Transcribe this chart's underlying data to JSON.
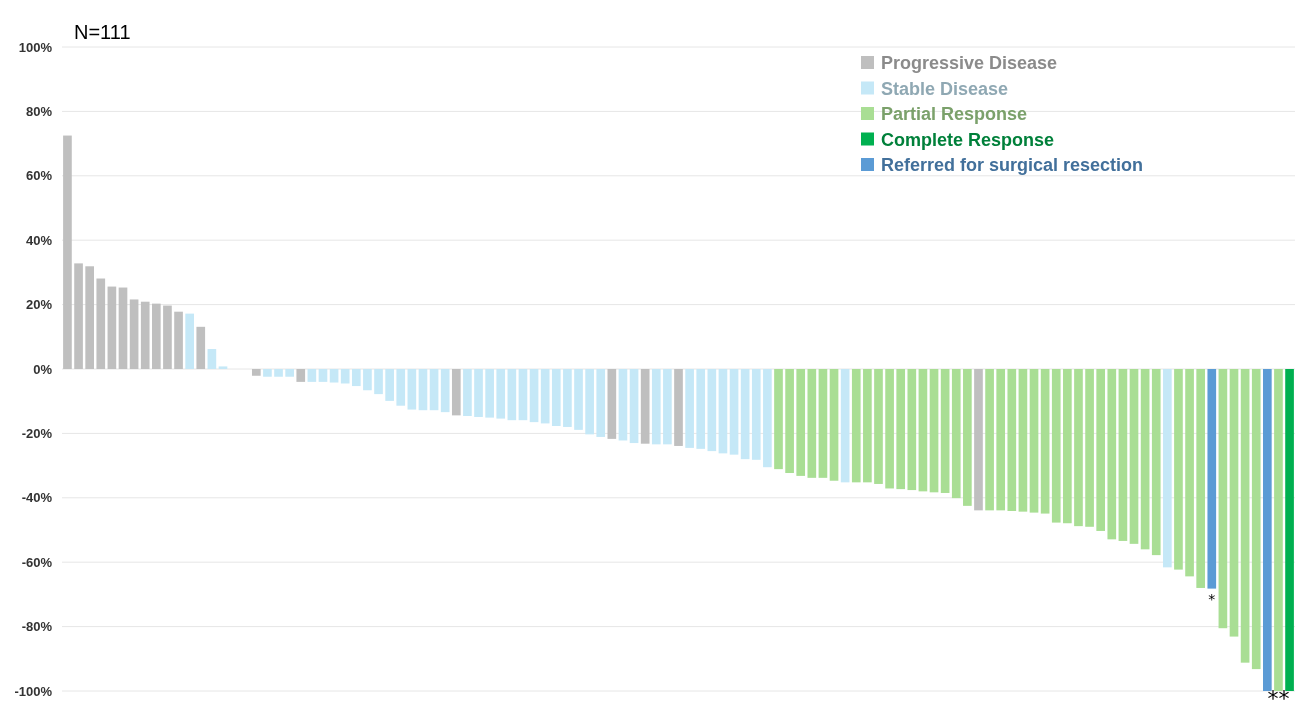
{
  "chart_data": {
    "type": "bar",
    "categories": [
      null,
      null,
      null,
      null,
      null,
      null,
      null,
      null,
      null,
      null,
      null,
      null,
      null,
      null,
      null,
      null,
      null,
      null,
      null,
      null,
      null,
      null,
      null,
      null,
      null,
      null,
      null,
      null,
      null,
      null,
      null,
      null,
      null,
      null,
      null,
      null,
      null,
      null,
      null,
      null,
      null,
      null,
      null,
      null,
      null,
      null,
      null,
      null,
      null,
      null,
      null,
      null,
      null,
      null,
      null,
      null,
      null,
      null,
      null,
      null,
      null,
      null,
      null,
      null,
      null,
      null,
      null,
      null,
      null,
      null,
      null,
      null,
      null,
      null,
      null,
      null,
      null,
      null,
      null,
      null,
      null,
      null,
      null,
      null,
      null,
      null,
      null,
      null,
      null,
      null,
      null,
      null,
      null,
      null,
      null,
      null,
      null,
      null,
      null,
      null,
      null,
      null,
      null,
      null,
      null,
      null,
      null,
      null,
      null,
      null,
      null
    ],
    "series": [
      {
        "name": "Progressive Disease",
        "color": "#bfbfbf",
        "values": [
          72.5,
          32.8,
          31.9,
          28.1,
          25.6,
          25.3,
          21.6,
          20.9,
          20.3,
          19.7,
          17.8,
          null,
          13.1,
          null,
          null,
          null,
          null,
          -2.1,
          null,
          null,
          null,
          -4,
          null,
          null,
          null,
          null,
          null,
          null,
          null,
          null,
          null,
          null,
          null,
          null,
          null,
          -14.4,
          null,
          null,
          null,
          null,
          null,
          null,
          null,
          null,
          null,
          null,
          null,
          null,
          null,
          -21.7,
          null,
          null,
          -23.2,
          null,
          null,
          -23.9,
          null,
          null,
          null,
          null,
          null,
          null,
          null,
          null,
          null,
          null,
          null,
          null,
          null,
          null,
          null,
          null,
          null,
          null,
          null,
          null,
          null,
          null,
          null,
          null,
          null,
          null,
          -43.9,
          null,
          null,
          null,
          null,
          null,
          null,
          null,
          null,
          null,
          null,
          null,
          null,
          null,
          null,
          null,
          null,
          null,
          null,
          null,
          null,
          null,
          null,
          null,
          null,
          null,
          null,
          null,
          null
        ]
      },
      {
        "name": "Stable Disease",
        "color": "#c5e8f7",
        "values": [
          null,
          null,
          null,
          null,
          null,
          null,
          null,
          null,
          null,
          null,
          null,
          17.2,
          null,
          6.2,
          0.8,
          null,
          null,
          null,
          -2.4,
          -2.4,
          -2.4,
          null,
          -4,
          -4,
          -4.2,
          -4.5,
          -5.3,
          -6.6,
          -7.8,
          -9.9,
          -11.4,
          -12.6,
          -12.8,
          -12.8,
          -13.4,
          null,
          -14.6,
          -14.9,
          -15.1,
          -15.4,
          -15.9,
          -15.9,
          -16.5,
          -16.9,
          -17.7,
          -18,
          -18.9,
          -20.3,
          -21.1,
          null,
          -22.2,
          -23,
          null,
          -23.4,
          -23.4,
          null,
          -24.5,
          -24.8,
          -25.5,
          -26.2,
          -26.6,
          -28,
          -28.2,
          -30.5,
          null,
          null,
          null,
          null,
          null,
          null,
          -35.2,
          null,
          null,
          null,
          null,
          null,
          null,
          null,
          null,
          null,
          null,
          null,
          null,
          null,
          null,
          null,
          null,
          null,
          null,
          null,
          null,
          null,
          null,
          null,
          null,
          null,
          null,
          null,
          null,
          -61.6,
          null,
          null,
          null,
          null,
          null,
          null,
          null,
          null,
          null,
          null,
          null
        ]
      },
      {
        "name": "Partial Response",
        "color": "#a9de94",
        "values": [
          null,
          null,
          null,
          null,
          null,
          null,
          null,
          null,
          null,
          null,
          null,
          null,
          null,
          null,
          null,
          null,
          null,
          null,
          null,
          null,
          null,
          null,
          null,
          null,
          null,
          null,
          null,
          null,
          null,
          null,
          null,
          null,
          null,
          null,
          null,
          null,
          null,
          null,
          null,
          null,
          null,
          null,
          null,
          null,
          null,
          null,
          null,
          null,
          null,
          null,
          null,
          null,
          null,
          null,
          null,
          null,
          null,
          null,
          null,
          null,
          null,
          null,
          null,
          null,
          -31.1,
          -32.3,
          -33.2,
          -33.8,
          -33.8,
          -34.7,
          null,
          -35.2,
          -35.2,
          -35.7,
          -37.1,
          -37.3,
          -37.6,
          -38,
          -38.3,
          -38.5,
          -40.1,
          -42.5,
          null,
          -43.9,
          -43.9,
          -44.1,
          -44.3,
          -44.6,
          -44.9,
          -47.7,
          -47.9,
          -48.8,
          -49,
          -50.3,
          -52.9,
          -53.4,
          -54.3,
          -56,
          -57.8,
          null,
          -62.3,
          -64.4,
          -68,
          null,
          -80.5,
          -83.1,
          -91.2,
          -93.2,
          null,
          -100,
          null
        ]
      },
      {
        "name": "Complete Response",
        "color": "#00b050",
        "values": [
          null,
          null,
          null,
          null,
          null,
          null,
          null,
          null,
          null,
          null,
          null,
          null,
          null,
          null,
          null,
          null,
          null,
          null,
          null,
          null,
          null,
          null,
          null,
          null,
          null,
          null,
          null,
          null,
          null,
          null,
          null,
          null,
          null,
          null,
          null,
          null,
          null,
          null,
          null,
          null,
          null,
          null,
          null,
          null,
          null,
          null,
          null,
          null,
          null,
          null,
          null,
          null,
          null,
          null,
          null,
          null,
          null,
          null,
          null,
          null,
          null,
          null,
          null,
          null,
          null,
          null,
          null,
          null,
          null,
          null,
          null,
          null,
          null,
          null,
          null,
          null,
          null,
          null,
          null,
          null,
          null,
          null,
          null,
          null,
          null,
          null,
          null,
          null,
          null,
          null,
          null,
          null,
          null,
          null,
          null,
          null,
          null,
          null,
          null,
          null,
          null,
          null,
          null,
          null,
          null,
          null,
          null,
          null,
          null,
          null,
          -100
        ]
      },
      {
        "name": "Referred for surgical resection",
        "color": "#5b9bd5",
        "values": [
          null,
          null,
          null,
          null,
          null,
          null,
          null,
          null,
          null,
          null,
          null,
          null,
          null,
          null,
          null,
          null,
          null,
          null,
          null,
          null,
          null,
          null,
          null,
          null,
          null,
          null,
          null,
          null,
          null,
          null,
          null,
          null,
          null,
          null,
          null,
          null,
          null,
          null,
          null,
          null,
          null,
          null,
          null,
          null,
          null,
          null,
          null,
          null,
          null,
          null,
          null,
          null,
          null,
          null,
          null,
          null,
          null,
          null,
          null,
          null,
          null,
          null,
          null,
          null,
          null,
          null,
          null,
          null,
          null,
          null,
          null,
          null,
          null,
          null,
          null,
          null,
          null,
          null,
          null,
          null,
          null,
          null,
          null,
          null,
          null,
          null,
          null,
          null,
          null,
          null,
          null,
          null,
          null,
          null,
          null,
          null,
          null,
          null,
          null,
          null,
          null,
          null,
          null,
          -68.2,
          null,
          null,
          null,
          null,
          -100,
          null,
          null
        ]
      }
    ],
    "ylim": [
      -100,
      100
    ],
    "yticks": [
      {
        "value": -100,
        "label": "-100%"
      },
      {
        "value": -80,
        "label": "-80%"
      },
      {
        "value": -60,
        "label": "-60%"
      },
      {
        "value": -40,
        "label": "-40%"
      },
      {
        "value": -20,
        "label": "-20%"
      },
      {
        "value": 0,
        "label": "0%"
      },
      {
        "value": 20,
        "label": "20%"
      },
      {
        "value": 40,
        "label": "40%"
      },
      {
        "value": 60,
        "label": "60%"
      },
      {
        "value": 80,
        "label": "80%"
      },
      {
        "value": 100,
        "label": "100%"
      }
    ],
    "stacked": true,
    "grid": "y",
    "legend": "top right",
    "tick_labels": "y",
    "annotations": [
      "N=111",
      {
        "text": "*",
        "y": -68.2
      },
      {
        "text": "**",
        "y": -100
      }
    ]
  }
}
